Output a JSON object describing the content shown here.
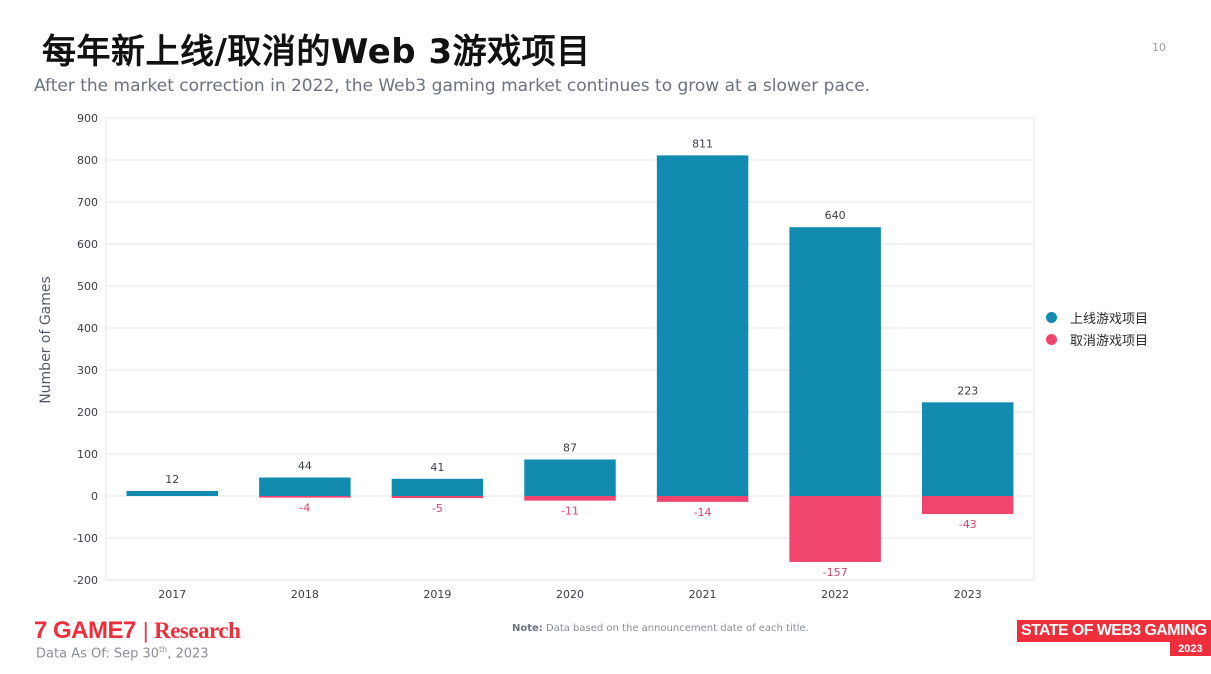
{
  "header": {
    "title": "每年新上线/取消的Web 3游戏项目",
    "subtitle": "After the market correction in 2022, the Web3 gaming market continues to grow at a slower pace.",
    "page_number": "10"
  },
  "chart_data": {
    "type": "bar",
    "categories": [
      "2017",
      "2018",
      "2019",
      "2020",
      "2021",
      "2022",
      "2023"
    ],
    "series": [
      {
        "name": "上线游戏项目",
        "values": [
          12,
          44,
          41,
          87,
          811,
          640,
          223
        ],
        "color": "#128bb1"
      },
      {
        "name": "取消游戏项目",
        "values": [
          0,
          -4,
          -5,
          -11,
          -14,
          -157,
          -43
        ],
        "color": "#f0456e"
      }
    ],
    "value_labels": {
      "launched": [
        "12",
        "44",
        "41",
        "87",
        "811",
        "640",
        "223"
      ],
      "cancelled": [
        "",
        "-4",
        "-5",
        "-11",
        "-14",
        "-157",
        "-43"
      ]
    },
    "ylabel": "Number of Games",
    "xlabel": "",
    "ylim": [
      -200,
      900
    ],
    "yticks": [
      -200,
      -100,
      0,
      100,
      200,
      300,
      400,
      500,
      600,
      700,
      800,
      900
    ],
    "grid": true,
    "legend_position": "right",
    "label_color_cancelled": "#e0426a"
  },
  "footer": {
    "brand_name": "7 GAME7",
    "brand_separator": "|",
    "brand_research": "Research",
    "data_asof_prefix": "Data As Of: Sep 30",
    "data_asof_sup": "th",
    "data_asof_suffix": ", 2023",
    "note_label": "Note:",
    "note_text": "Data based on the announcement date of each title.",
    "report_title": "STATE OF WEB3 GAMING",
    "report_year": "2023"
  }
}
